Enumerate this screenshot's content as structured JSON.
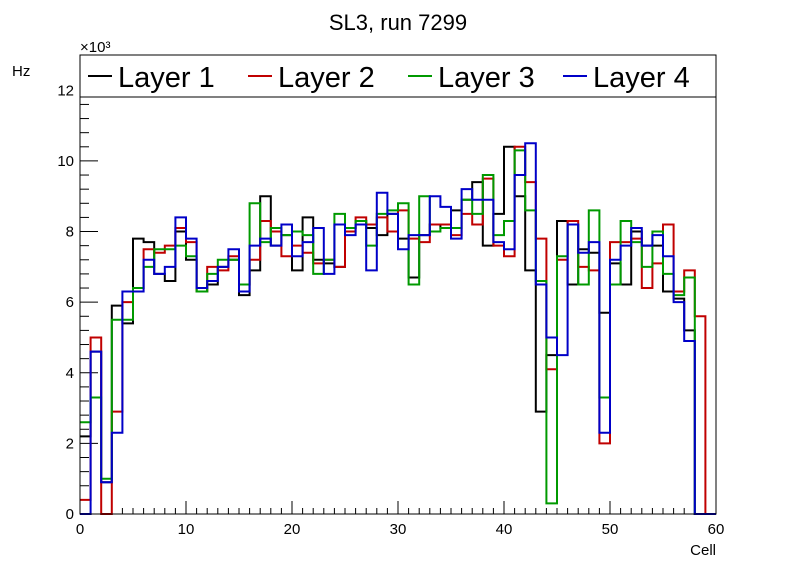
{
  "chart_data": {
    "type": "histogram-step",
    "title": "SL3, run 7299",
    "xlabel": "Cell",
    "ylabel": "Hz",
    "y_exponent_label": "×10³",
    "xlim": [
      0,
      60
    ],
    "ylim": [
      0,
      13000
    ],
    "x_ticks": [
      0,
      10,
      20,
      30,
      40,
      50,
      60
    ],
    "x_tick_labels": [
      "0",
      "10",
      "20",
      "30",
      "40",
      "50",
      "60"
    ],
    "y_ticks": [
      0,
      2000,
      4000,
      6000,
      8000,
      10000,
      12000
    ],
    "y_tick_labels": [
      "0",
      "2",
      "4",
      "6",
      "8",
      "10",
      "12"
    ],
    "x_minor_step": 1,
    "y_minor_step": 400,
    "legend_position": "top",
    "bin_width": 1,
    "series": [
      {
        "name": "Layer 1",
        "color": "#000000",
        "values": [
          2200,
          4600,
          900,
          5900,
          5400,
          7800,
          7700,
          6800,
          6600,
          8000,
          7200,
          6300,
          6500,
          7000,
          7200,
          6200,
          6900,
          9000,
          7600,
          7900,
          6900,
          8400,
          7200,
          7100,
          7000,
          8100,
          8300,
          8100,
          7900,
          8500,
          7800,
          6700,
          7900,
          8200,
          8100,
          8600,
          8900,
          9400,
          7600,
          8500,
          10400,
          9000,
          6900,
          2900,
          4500,
          8300,
          6500,
          7500,
          7400,
          5700,
          7100,
          6500,
          8000,
          7600,
          7600,
          6300,
          6100,
          5200,
          0,
          0
        ]
      },
      {
        "name": "Layer 2",
        "color": "#c00000",
        "values": [
          400,
          5000,
          0,
          2900,
          6000,
          6400,
          7500,
          7400,
          7600,
          8100,
          7700,
          6300,
          7000,
          6900,
          7300,
          6500,
          7200,
          8300,
          8000,
          7300,
          7600,
          7400,
          7100,
          7200,
          7000,
          8000,
          8400,
          8200,
          8400,
          8000,
          8600,
          7800,
          7700,
          8200,
          8200,
          7900,
          8500,
          8200,
          9500,
          7600,
          7300,
          10400,
          9400,
          7800,
          4100,
          7200,
          8300,
          7000,
          6900,
          2000,
          7700,
          7700,
          7800,
          6400,
          7100,
          8200,
          6300,
          6900,
          5600,
          0
        ]
      },
      {
        "name": "Layer 3",
        "color": "#009900",
        "values": [
          2600,
          3300,
          1000,
          5500,
          5500,
          6400,
          7000,
          7500,
          7500,
          7600,
          7300,
          6300,
          6800,
          7200,
          7200,
          6500,
          8800,
          7700,
          8100,
          7900,
          8000,
          7900,
          6800,
          7200,
          8500,
          8100,
          8300,
          7600,
          8500,
          8600,
          8800,
          6500,
          9000,
          8000,
          8100,
          8100,
          8900,
          8500,
          9600,
          7900,
          8300,
          10300,
          8600,
          6600,
          300,
          7300,
          8200,
          6500,
          8600,
          3300,
          6500,
          8300,
          7700,
          7000,
          8000,
          6800,
          6200,
          6700,
          0,
          0
        ]
      },
      {
        "name": "Layer 4",
        "color": "#0000c8",
        "values": [
          0,
          4600,
          900,
          2300,
          6300,
          6300,
          7200,
          6800,
          7000,
          8400,
          7800,
          6400,
          6600,
          7000,
          7500,
          6300,
          7600,
          7800,
          7600,
          8200,
          7300,
          7700,
          8100,
          6800,
          8200,
          7900,
          8200,
          6900,
          9100,
          8500,
          7500,
          7900,
          7900,
          9000,
          8700,
          7800,
          9200,
          8900,
          8900,
          7700,
          7500,
          9600,
          10500,
          6500,
          5000,
          4500,
          8200,
          7400,
          7700,
          2300,
          7200,
          7600,
          8100,
          7600,
          7900,
          7300,
          6000,
          4900,
          0,
          0
        ]
      }
    ]
  }
}
